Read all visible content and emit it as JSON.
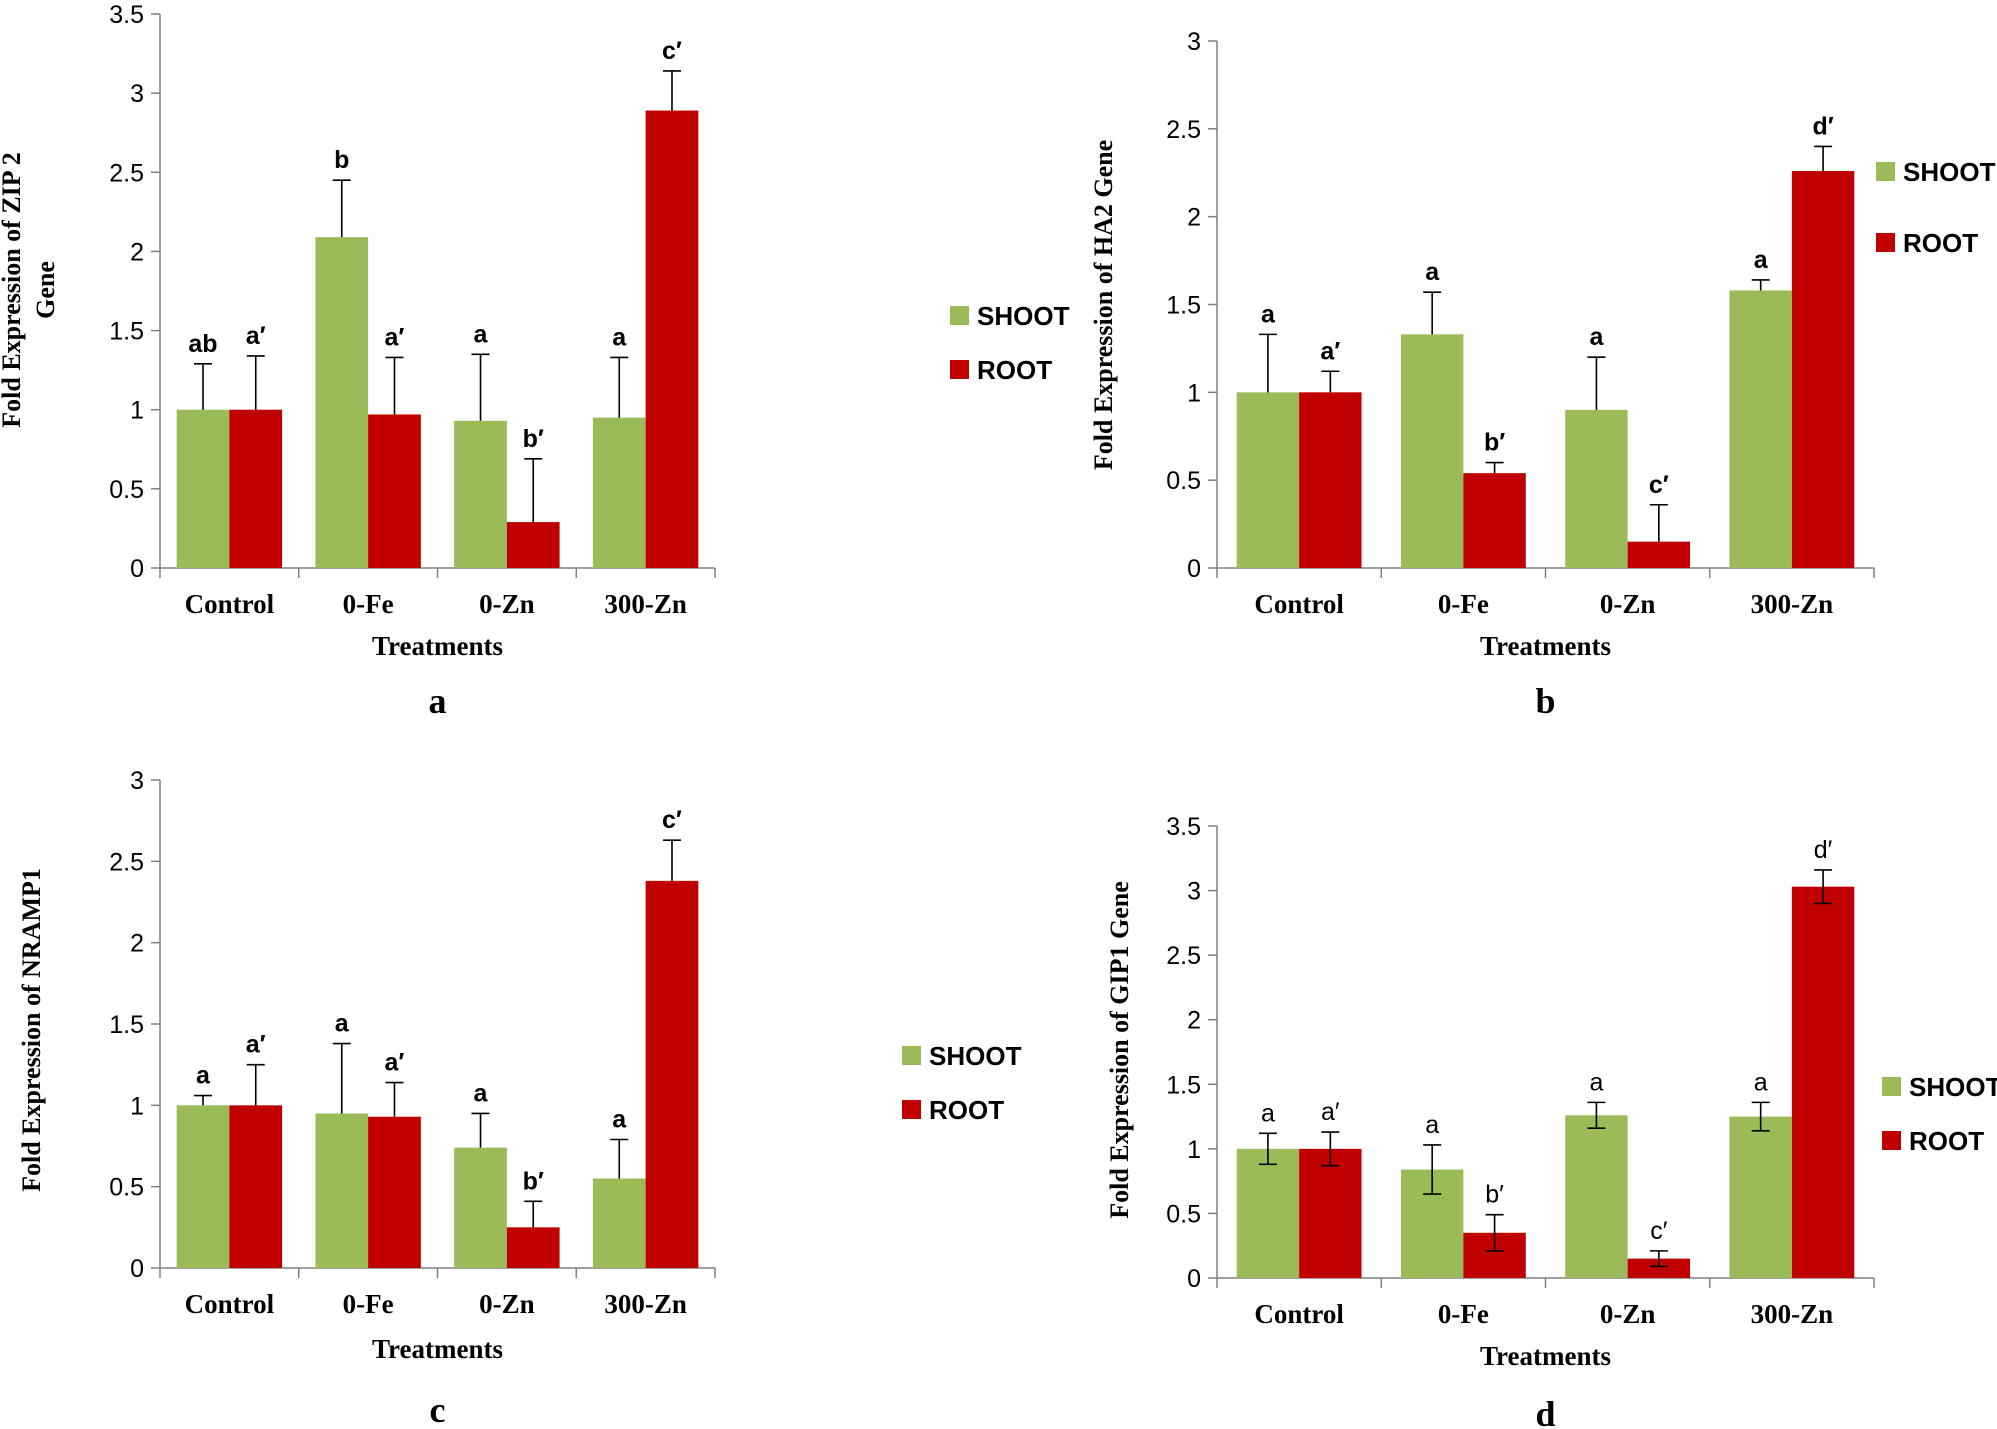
{
  "colors": {
    "shoot": "#9bbb59",
    "root": "#c00000",
    "axis": "#808080"
  },
  "chart_data": [
    {
      "id": "a",
      "type": "bar",
      "panel_label": "a",
      "categories": [
        "Control",
        "0-Fe",
        "0-Zn",
        "300-Zn"
      ],
      "xlabel": "Treatments",
      "ylabel": [
        "Fold Expression of ZIP 2",
        "Gene"
      ],
      "ylim": [
        0,
        3.5
      ],
      "yticks": [
        "0",
        "0.5",
        "1",
        "1.5",
        "2",
        "2.5",
        "3",
        "3.5"
      ],
      "sig_bold": true,
      "legend_position": "right",
      "series": [
        {
          "name": "SHOOT",
          "values": [
            1.0,
            2.09,
            0.93,
            0.95
          ],
          "errors": [
            0.29,
            0.36,
            0.42,
            0.38
          ],
          "labels": [
            "ab",
            "b",
            "a",
            "a"
          ]
        },
        {
          "name": "ROOT",
          "values": [
            1.0,
            0.97,
            0.29,
            2.89
          ],
          "errors": [
            0.34,
            0.36,
            0.4,
            0.25
          ],
          "labels": [
            "a′",
            "a′",
            "b′",
            "c′"
          ]
        }
      ]
    },
    {
      "id": "b",
      "type": "bar",
      "panel_label": "b",
      "categories": [
        "Control",
        "0-Fe",
        "0-Zn",
        "300-Zn"
      ],
      "xlabel": "Treatments",
      "ylabel": [
        "Fold Expression of HA2 Gene"
      ],
      "ylim": [
        0,
        3
      ],
      "yticks": [
        "0",
        "0.5",
        "1",
        "1.5",
        "2",
        "2.5",
        "3"
      ],
      "sig_bold": true,
      "legend_position": "right",
      "series": [
        {
          "name": "SHOOT",
          "values": [
            1.0,
            1.33,
            0.9,
            1.58
          ],
          "errors": [
            0.33,
            0.24,
            0.3,
            0.06
          ],
          "labels": [
            "a",
            "a",
            "a",
            "a"
          ]
        },
        {
          "name": "ROOT",
          "values": [
            1.0,
            0.54,
            0.15,
            2.26
          ],
          "errors": [
            0.12,
            0.06,
            0.21,
            0.14
          ],
          "labels": [
            "a′",
            "b′",
            "c′",
            "d′"
          ]
        }
      ]
    },
    {
      "id": "c",
      "type": "bar",
      "panel_label": "c",
      "categories": [
        "Control",
        "0-Fe",
        "0-Zn",
        "300-Zn"
      ],
      "xlabel": "Treatments",
      "ylabel": [
        "Fold Expression of NRAMP1"
      ],
      "ylim": [
        0,
        3
      ],
      "yticks": [
        "0",
        "0.5",
        "1",
        "1.5",
        "2",
        "2.5",
        "3"
      ],
      "sig_bold": true,
      "legend_position": "right",
      "series": [
        {
          "name": "SHOOT",
          "values": [
            1.0,
            0.95,
            0.74,
            0.55
          ],
          "errors": [
            0.06,
            0.43,
            0.21,
            0.24
          ],
          "labels": [
            "a",
            "a",
            "a",
            "a"
          ]
        },
        {
          "name": "ROOT",
          "values": [
            1.0,
            0.93,
            0.25,
            2.38
          ],
          "errors": [
            0.25,
            0.21,
            0.16,
            0.25
          ],
          "labels": [
            "a′",
            "a′",
            "b′",
            "c′"
          ]
        }
      ]
    },
    {
      "id": "d",
      "type": "bar",
      "panel_label": "d",
      "categories": [
        "Control",
        "0-Fe",
        "0-Zn",
        "300-Zn"
      ],
      "xlabel": "Treatments",
      "ylabel": [
        "Fold Expression of GIP1 Gene"
      ],
      "ylim": [
        0,
        3.5
      ],
      "yticks": [
        "0",
        "0.5",
        "1",
        "1.5",
        "2",
        "2.5",
        "3",
        "3.5"
      ],
      "sig_bold": false,
      "legend_position": "right",
      "series": [
        {
          "name": "SHOOT",
          "values": [
            1.0,
            0.84,
            1.26,
            1.25
          ],
          "errors": [
            0.12,
            0.19,
            0.1,
            0.11
          ],
          "labels": [
            "a",
            "a",
            "a",
            "a"
          ]
        },
        {
          "name": "ROOT",
          "values": [
            1.0,
            0.35,
            0.15,
            3.03
          ],
          "errors": [
            0.13,
            0.14,
            0.06,
            0.13
          ],
          "labels": [
            "a′",
            "b′",
            "c′",
            "d′"
          ]
        }
      ]
    }
  ]
}
